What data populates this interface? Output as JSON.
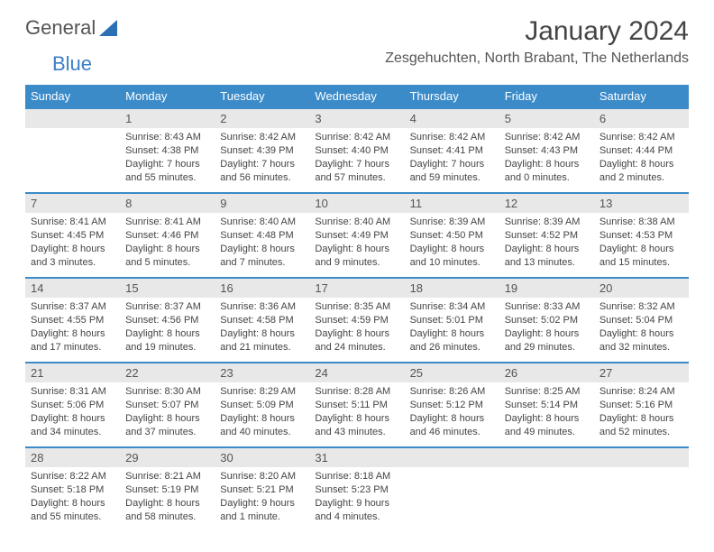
{
  "logo": {
    "text1": "General",
    "text2": "Blue",
    "triangle_color": "#2b6fb5"
  },
  "title": "January 2024",
  "location": "Zesgehuchten, North Brabant, The Netherlands",
  "header_bg": "#3b8bc9",
  "daynum_bg": "#e8e8e8",
  "days_of_week": [
    "Sunday",
    "Monday",
    "Tuesday",
    "Wednesday",
    "Thursday",
    "Friday",
    "Saturday"
  ],
  "weeks": [
    [
      {
        "n": "",
        "sunrise": "",
        "sunset": "",
        "daylight": ""
      },
      {
        "n": "1",
        "sunrise": "Sunrise: 8:43 AM",
        "sunset": "Sunset: 4:38 PM",
        "daylight": "Daylight: 7 hours and 55 minutes."
      },
      {
        "n": "2",
        "sunrise": "Sunrise: 8:42 AM",
        "sunset": "Sunset: 4:39 PM",
        "daylight": "Daylight: 7 hours and 56 minutes."
      },
      {
        "n": "3",
        "sunrise": "Sunrise: 8:42 AM",
        "sunset": "Sunset: 4:40 PM",
        "daylight": "Daylight: 7 hours and 57 minutes."
      },
      {
        "n": "4",
        "sunrise": "Sunrise: 8:42 AM",
        "sunset": "Sunset: 4:41 PM",
        "daylight": "Daylight: 7 hours and 59 minutes."
      },
      {
        "n": "5",
        "sunrise": "Sunrise: 8:42 AM",
        "sunset": "Sunset: 4:43 PM",
        "daylight": "Daylight: 8 hours and 0 minutes."
      },
      {
        "n": "6",
        "sunrise": "Sunrise: 8:42 AM",
        "sunset": "Sunset: 4:44 PM",
        "daylight": "Daylight: 8 hours and 2 minutes."
      }
    ],
    [
      {
        "n": "7",
        "sunrise": "Sunrise: 8:41 AM",
        "sunset": "Sunset: 4:45 PM",
        "daylight": "Daylight: 8 hours and 3 minutes."
      },
      {
        "n": "8",
        "sunrise": "Sunrise: 8:41 AM",
        "sunset": "Sunset: 4:46 PM",
        "daylight": "Daylight: 8 hours and 5 minutes."
      },
      {
        "n": "9",
        "sunrise": "Sunrise: 8:40 AM",
        "sunset": "Sunset: 4:48 PM",
        "daylight": "Daylight: 8 hours and 7 minutes."
      },
      {
        "n": "10",
        "sunrise": "Sunrise: 8:40 AM",
        "sunset": "Sunset: 4:49 PM",
        "daylight": "Daylight: 8 hours and 9 minutes."
      },
      {
        "n": "11",
        "sunrise": "Sunrise: 8:39 AM",
        "sunset": "Sunset: 4:50 PM",
        "daylight": "Daylight: 8 hours and 10 minutes."
      },
      {
        "n": "12",
        "sunrise": "Sunrise: 8:39 AM",
        "sunset": "Sunset: 4:52 PM",
        "daylight": "Daylight: 8 hours and 13 minutes."
      },
      {
        "n": "13",
        "sunrise": "Sunrise: 8:38 AM",
        "sunset": "Sunset: 4:53 PM",
        "daylight": "Daylight: 8 hours and 15 minutes."
      }
    ],
    [
      {
        "n": "14",
        "sunrise": "Sunrise: 8:37 AM",
        "sunset": "Sunset: 4:55 PM",
        "daylight": "Daylight: 8 hours and 17 minutes."
      },
      {
        "n": "15",
        "sunrise": "Sunrise: 8:37 AM",
        "sunset": "Sunset: 4:56 PM",
        "daylight": "Daylight: 8 hours and 19 minutes."
      },
      {
        "n": "16",
        "sunrise": "Sunrise: 8:36 AM",
        "sunset": "Sunset: 4:58 PM",
        "daylight": "Daylight: 8 hours and 21 minutes."
      },
      {
        "n": "17",
        "sunrise": "Sunrise: 8:35 AM",
        "sunset": "Sunset: 4:59 PM",
        "daylight": "Daylight: 8 hours and 24 minutes."
      },
      {
        "n": "18",
        "sunrise": "Sunrise: 8:34 AM",
        "sunset": "Sunset: 5:01 PM",
        "daylight": "Daylight: 8 hours and 26 minutes."
      },
      {
        "n": "19",
        "sunrise": "Sunrise: 8:33 AM",
        "sunset": "Sunset: 5:02 PM",
        "daylight": "Daylight: 8 hours and 29 minutes."
      },
      {
        "n": "20",
        "sunrise": "Sunrise: 8:32 AM",
        "sunset": "Sunset: 5:04 PM",
        "daylight": "Daylight: 8 hours and 32 minutes."
      }
    ],
    [
      {
        "n": "21",
        "sunrise": "Sunrise: 8:31 AM",
        "sunset": "Sunset: 5:06 PM",
        "daylight": "Daylight: 8 hours and 34 minutes."
      },
      {
        "n": "22",
        "sunrise": "Sunrise: 8:30 AM",
        "sunset": "Sunset: 5:07 PM",
        "daylight": "Daylight: 8 hours and 37 minutes."
      },
      {
        "n": "23",
        "sunrise": "Sunrise: 8:29 AM",
        "sunset": "Sunset: 5:09 PM",
        "daylight": "Daylight: 8 hours and 40 minutes."
      },
      {
        "n": "24",
        "sunrise": "Sunrise: 8:28 AM",
        "sunset": "Sunset: 5:11 PM",
        "daylight": "Daylight: 8 hours and 43 minutes."
      },
      {
        "n": "25",
        "sunrise": "Sunrise: 8:26 AM",
        "sunset": "Sunset: 5:12 PM",
        "daylight": "Daylight: 8 hours and 46 minutes."
      },
      {
        "n": "26",
        "sunrise": "Sunrise: 8:25 AM",
        "sunset": "Sunset: 5:14 PM",
        "daylight": "Daylight: 8 hours and 49 minutes."
      },
      {
        "n": "27",
        "sunrise": "Sunrise: 8:24 AM",
        "sunset": "Sunset: 5:16 PM",
        "daylight": "Daylight: 8 hours and 52 minutes."
      }
    ],
    [
      {
        "n": "28",
        "sunrise": "Sunrise: 8:22 AM",
        "sunset": "Sunset: 5:18 PM",
        "daylight": "Daylight: 8 hours and 55 minutes."
      },
      {
        "n": "29",
        "sunrise": "Sunrise: 8:21 AM",
        "sunset": "Sunset: 5:19 PM",
        "daylight": "Daylight: 8 hours and 58 minutes."
      },
      {
        "n": "30",
        "sunrise": "Sunrise: 8:20 AM",
        "sunset": "Sunset: 5:21 PM",
        "daylight": "Daylight: 9 hours and 1 minute."
      },
      {
        "n": "31",
        "sunrise": "Sunrise: 8:18 AM",
        "sunset": "Sunset: 5:23 PM",
        "daylight": "Daylight: 9 hours and 4 minutes."
      },
      {
        "n": "",
        "sunrise": "",
        "sunset": "",
        "daylight": ""
      },
      {
        "n": "",
        "sunrise": "",
        "sunset": "",
        "daylight": ""
      },
      {
        "n": "",
        "sunrise": "",
        "sunset": "",
        "daylight": ""
      }
    ]
  ]
}
